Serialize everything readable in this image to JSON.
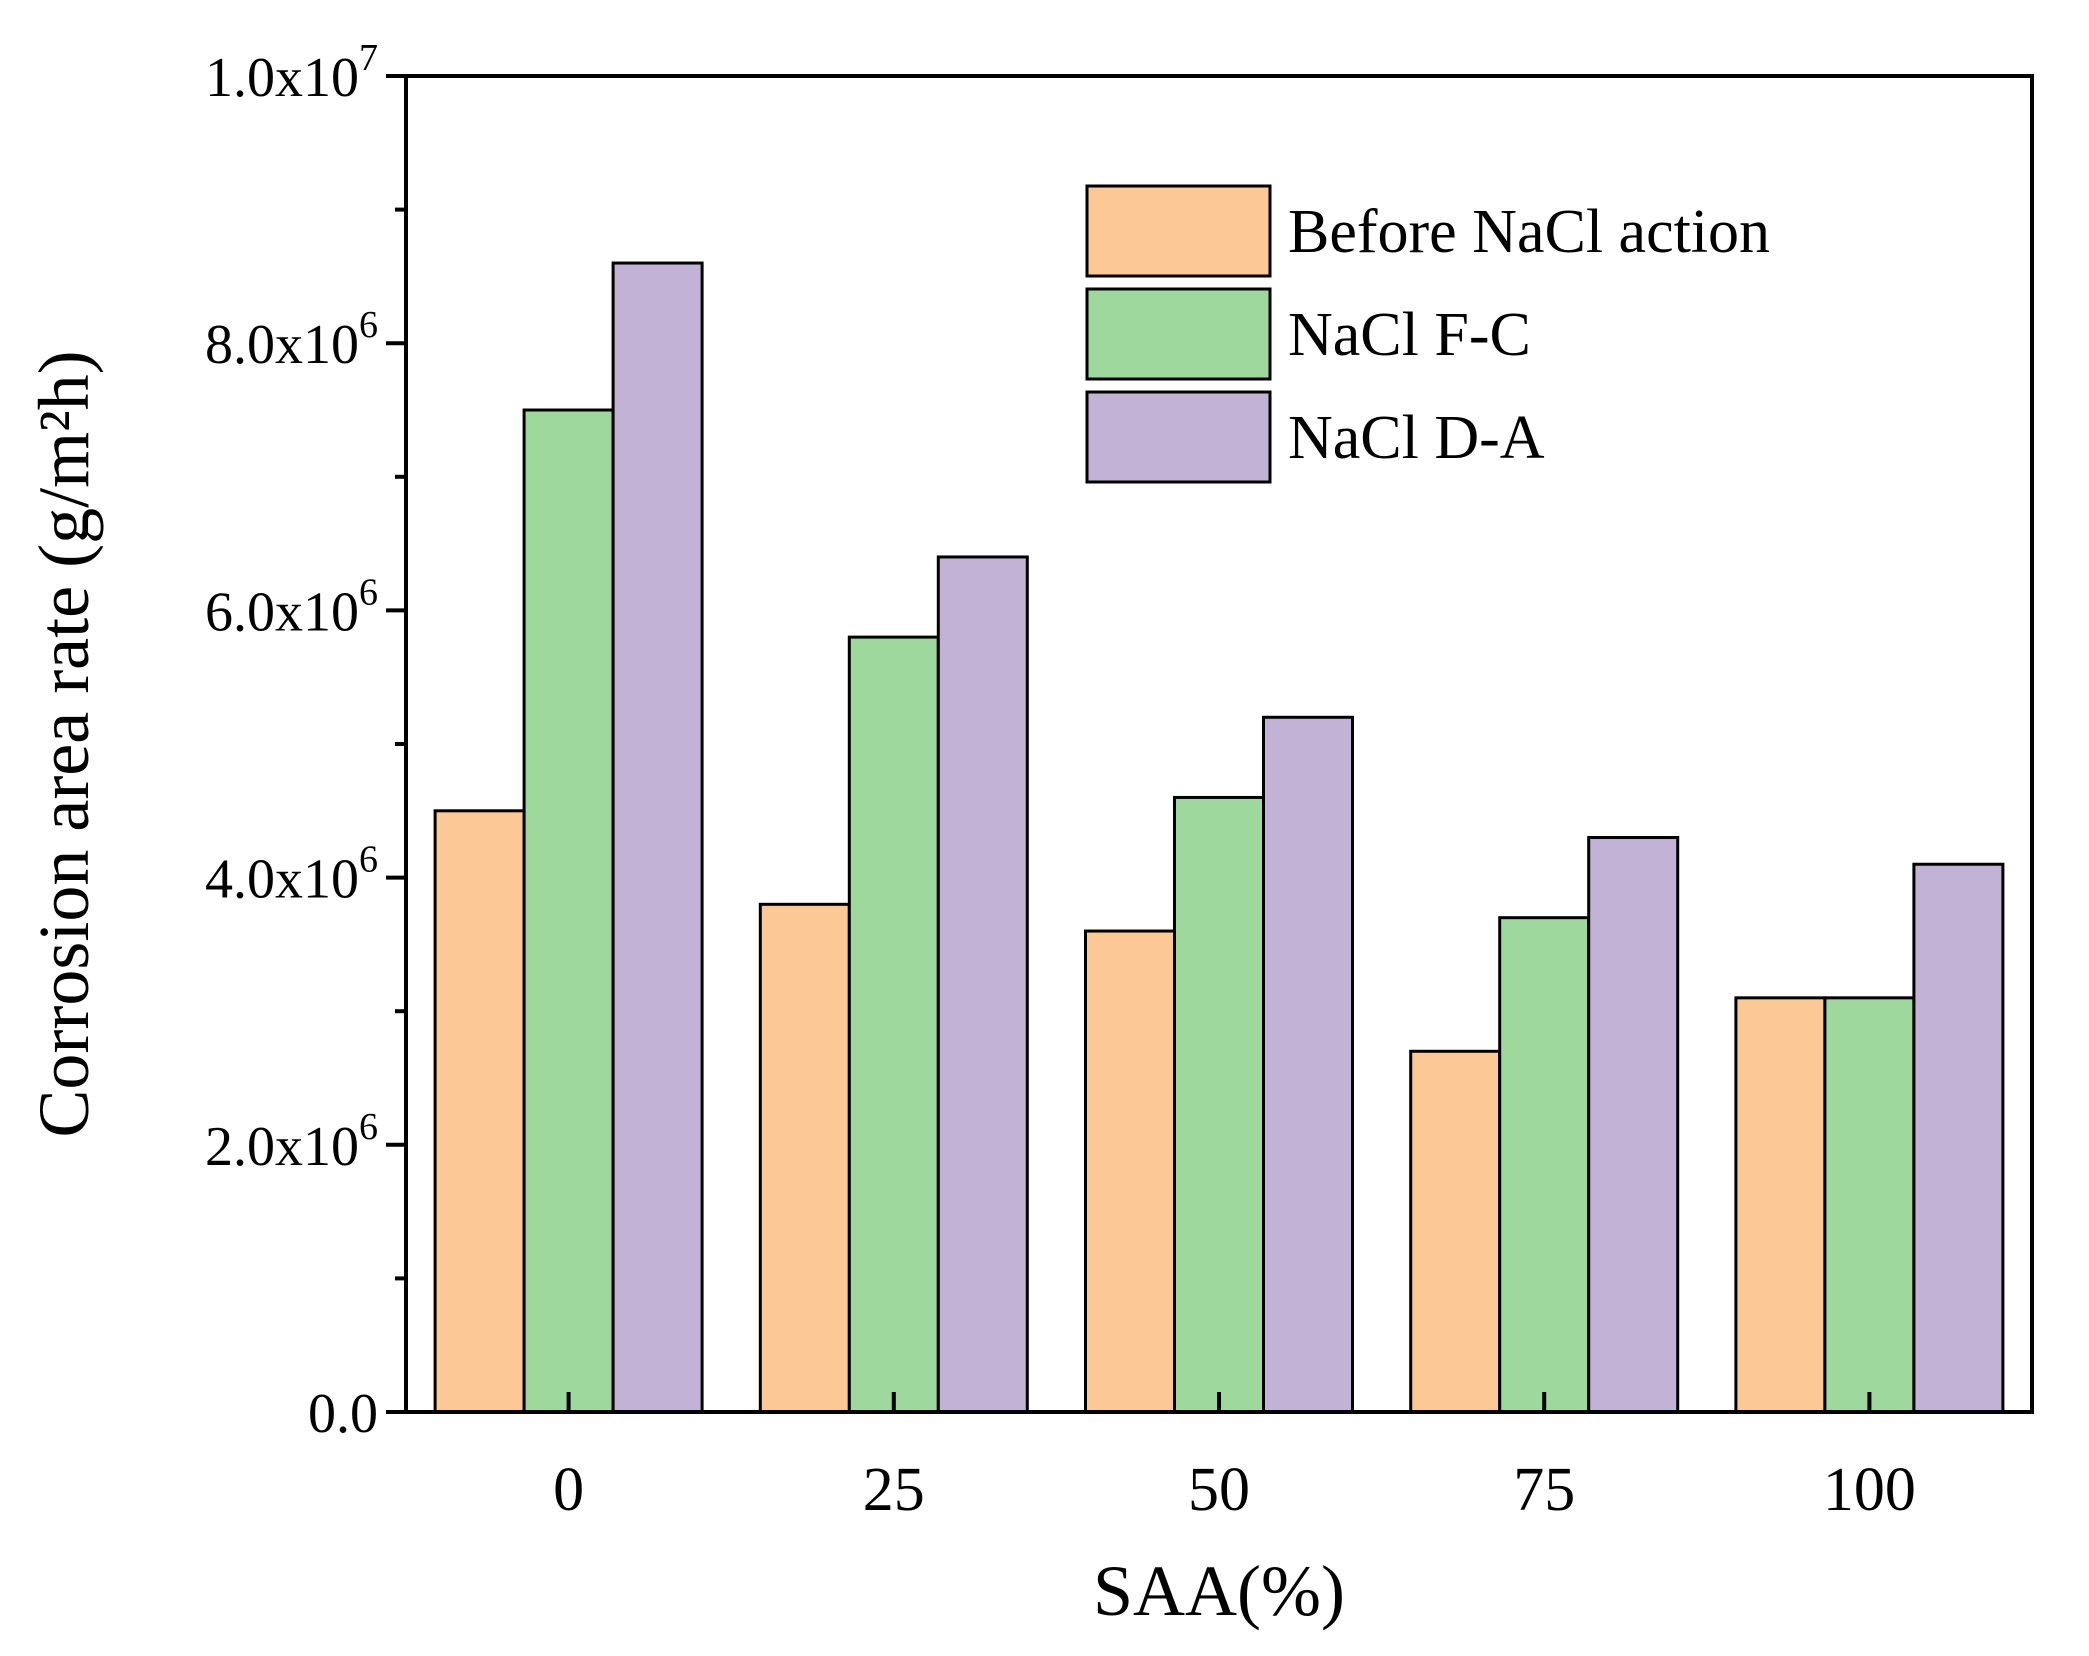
{
  "chart_data": {
    "type": "bar",
    "xlabel": "SAA(%)",
    "ylabel": "Corrosion area rate (g/m²h)",
    "categories": [
      "0",
      "25",
      "50",
      "75",
      "100"
    ],
    "ylim": [
      0,
      10000000
    ],
    "yticks": [
      {
        "value": 0,
        "mantissa": "0.0",
        "base": "",
        "exp": ""
      },
      {
        "value": 2000000,
        "mantissa": "2.0x10",
        "base": "",
        "exp": "6"
      },
      {
        "value": 4000000,
        "mantissa": "4.0x10",
        "base": "",
        "exp": "6"
      },
      {
        "value": 6000000,
        "mantissa": "6.0x10",
        "base": "",
        "exp": "6"
      },
      {
        "value": 8000000,
        "mantissa": "8.0x10",
        "base": "",
        "exp": "6"
      },
      {
        "value": 10000000,
        "mantissa": "1.0x10",
        "base": "",
        "exp": "7"
      }
    ],
    "series": [
      {
        "name": "Before NaCl action",
        "color": "#fcc896",
        "values": [
          4500000,
          3800000,
          3600000,
          2700000,
          3100000
        ]
      },
      {
        "name": "NaCl F-C",
        "color": "#9fd89c",
        "values": [
          7500000,
          5800000,
          4600000,
          3700000,
          3100000
        ]
      },
      {
        "name": "NaCl D-A",
        "color": "#c2b2d6",
        "values": [
          8600000,
          6400000,
          5200000,
          4300000,
          4100000
        ]
      }
    ],
    "legend_position": "top-right",
    "grid": false
  }
}
